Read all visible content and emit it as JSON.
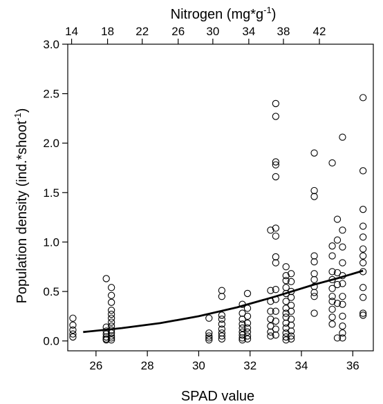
{
  "chart_data": {
    "type": "scatter",
    "title": "",
    "xlabel": "SPAD value",
    "ylabel": "Population density (ind.*shoot",
    "ylabel_superscript": "-1",
    "ylabel_close": ")",
    "top_axis_label": "Nitrogen (mg*g",
    "top_axis_superscript": "-1",
    "top_axis_close": ")",
    "xlim": [
      24.9,
      36.8
    ],
    "ylim": [
      -0.1,
      3.0
    ],
    "x_ticks": [
      26,
      28,
      30,
      32,
      34,
      36
    ],
    "y_ticks": [
      0.0,
      0.5,
      1.0,
      1.5,
      2.0,
      2.5,
      3.0
    ],
    "y_tick_labels": [
      "0.0",
      "0.5",
      "1.0",
      "1.5",
      "2.0",
      "2.5",
      "3.0"
    ],
    "top_ticks": [
      14,
      18,
      22,
      26,
      30,
      34,
      38,
      42
    ],
    "top_tick_spad": [
      25.05,
      26.45,
      27.8,
      29.2,
      30.55,
      31.95,
      33.3,
      34.7
    ],
    "grid": false,
    "marker": "open-circle",
    "points": [
      [
        25.1,
        0.23
      ],
      [
        25.1,
        0.16
      ],
      [
        25.1,
        0.11
      ],
      [
        25.1,
        0.07
      ],
      [
        25.1,
        0.04
      ],
      [
        26.4,
        0.63
      ],
      [
        26.4,
        0.14
      ],
      [
        26.4,
        0.1
      ],
      [
        26.4,
        0.07
      ],
      [
        26.4,
        0.04
      ],
      [
        26.4,
        0.02
      ],
      [
        26.4,
        0.01
      ],
      [
        26.6,
        0.54
      ],
      [
        26.6,
        0.46
      ],
      [
        26.6,
        0.39
      ],
      [
        26.6,
        0.31
      ],
      [
        26.6,
        0.27
      ],
      [
        26.6,
        0.23
      ],
      [
        26.6,
        0.19
      ],
      [
        26.6,
        0.15
      ],
      [
        26.6,
        0.11
      ],
      [
        26.6,
        0.08
      ],
      [
        26.6,
        0.05
      ],
      [
        26.6,
        0.03
      ],
      [
        26.6,
        0.01
      ],
      [
        30.4,
        0.23
      ],
      [
        30.4,
        0.08
      ],
      [
        30.4,
        0.05
      ],
      [
        30.4,
        0.03
      ],
      [
        30.4,
        0.01
      ],
      [
        30.9,
        0.51
      ],
      [
        30.9,
        0.45
      ],
      [
        30.9,
        0.26
      ],
      [
        30.9,
        0.22
      ],
      [
        30.9,
        0.17
      ],
      [
        30.9,
        0.12
      ],
      [
        30.9,
        0.08
      ],
      [
        30.9,
        0.05
      ],
      [
        30.9,
        0.02
      ],
      [
        31.7,
        0.37
      ],
      [
        31.7,
        0.28
      ],
      [
        31.7,
        0.22
      ],
      [
        31.7,
        0.17
      ],
      [
        31.7,
        0.13
      ],
      [
        31.7,
        0.09
      ],
      [
        31.7,
        0.06
      ],
      [
        31.7,
        0.03
      ],
      [
        31.7,
        0.01
      ],
      [
        31.9,
        0.48
      ],
      [
        31.9,
        0.33
      ],
      [
        31.9,
        0.25
      ],
      [
        31.9,
        0.18
      ],
      [
        31.9,
        0.13
      ],
      [
        31.9,
        0.09
      ],
      [
        31.9,
        0.05
      ],
      [
        31.9,
        0.02
      ],
      [
        32.8,
        1.12
      ],
      [
        32.8,
        0.51
      ],
      [
        32.8,
        0.4
      ],
      [
        32.8,
        0.3
      ],
      [
        32.8,
        0.22
      ],
      [
        32.8,
        0.15
      ],
      [
        32.8,
        0.09
      ],
      [
        32.8,
        0.05
      ],
      [
        33.0,
        2.4
      ],
      [
        33.0,
        2.27
      ],
      [
        33.0,
        1.81
      ],
      [
        33.0,
        1.78
      ],
      [
        33.0,
        1.66
      ],
      [
        33.0,
        1.14
      ],
      [
        33.0,
        1.06
      ],
      [
        33.0,
        0.85
      ],
      [
        33.0,
        0.79
      ],
      [
        33.0,
        0.52
      ],
      [
        33.0,
        0.42
      ],
      [
        33.0,
        0.3
      ],
      [
        33.0,
        0.2
      ],
      [
        33.0,
        0.12
      ],
      [
        33.0,
        0.06
      ],
      [
        33.4,
        0.75
      ],
      [
        33.4,
        0.66
      ],
      [
        33.4,
        0.61
      ],
      [
        33.4,
        0.54
      ],
      [
        33.4,
        0.48
      ],
      [
        33.4,
        0.4
      ],
      [
        33.4,
        0.33
      ],
      [
        33.4,
        0.28
      ],
      [
        33.4,
        0.24
      ],
      [
        33.4,
        0.18
      ],
      [
        33.4,
        0.13
      ],
      [
        33.4,
        0.08
      ],
      [
        33.4,
        0.04
      ],
      [
        33.4,
        0.01
      ],
      [
        33.6,
        0.68
      ],
      [
        33.6,
        0.6
      ],
      [
        33.6,
        0.5
      ],
      [
        33.6,
        0.44
      ],
      [
        33.6,
        0.36
      ],
      [
        33.6,
        0.3
      ],
      [
        33.6,
        0.22
      ],
      [
        33.6,
        0.16
      ],
      [
        33.6,
        0.1
      ],
      [
        33.6,
        0.05
      ],
      [
        33.6,
        0.02
      ],
      [
        34.5,
        1.9
      ],
      [
        34.5,
        1.52
      ],
      [
        34.5,
        1.46
      ],
      [
        34.5,
        0.86
      ],
      [
        34.5,
        0.8
      ],
      [
        34.5,
        0.68
      ],
      [
        34.5,
        0.62
      ],
      [
        34.5,
        0.55
      ],
      [
        34.5,
        0.49
      ],
      [
        34.5,
        0.45
      ],
      [
        34.5,
        0.28
      ],
      [
        35.2,
        1.8
      ],
      [
        35.2,
        0.96
      ],
      [
        35.2,
        0.86
      ],
      [
        35.2,
        0.7
      ],
      [
        35.2,
        0.62
      ],
      [
        35.2,
        0.53
      ],
      [
        35.2,
        0.45
      ],
      [
        35.2,
        0.4
      ],
      [
        35.2,
        0.32
      ],
      [
        35.2,
        0.24
      ],
      [
        35.2,
        0.17
      ],
      [
        35.4,
        1.23
      ],
      [
        35.4,
        1.02
      ],
      [
        35.4,
        0.69
      ],
      [
        35.4,
        0.57
      ],
      [
        35.4,
        0.38
      ],
      [
        35.4,
        0.03
      ],
      [
        35.6,
        2.06
      ],
      [
        35.6,
        1.12
      ],
      [
        35.6,
        0.95
      ],
      [
        35.6,
        0.79
      ],
      [
        35.6,
        0.66
      ],
      [
        35.6,
        0.58
      ],
      [
        35.6,
        0.45
      ],
      [
        35.6,
        0.37
      ],
      [
        35.6,
        0.25
      ],
      [
        35.6,
        0.15
      ],
      [
        35.6,
        0.08
      ],
      [
        35.6,
        0.03
      ],
      [
        36.4,
        2.46
      ],
      [
        36.4,
        1.72
      ],
      [
        36.4,
        1.33
      ],
      [
        36.4,
        1.16
      ],
      [
        36.4,
        1.05
      ],
      [
        36.4,
        0.93
      ],
      [
        36.4,
        0.86
      ],
      [
        36.4,
        0.79
      ],
      [
        36.4,
        0.7
      ],
      [
        36.4,
        0.54
      ],
      [
        36.4,
        0.44
      ],
      [
        36.4,
        0.28
      ],
      [
        36.4,
        0.26
      ]
    ],
    "fit_curve": {
      "type": "exponential",
      "x": [
        25.5,
        36.4
      ],
      "points": [
        [
          25.5,
          0.09
        ],
        [
          27.0,
          0.13
        ],
        [
          28.5,
          0.18
        ],
        [
          30.0,
          0.25
        ],
        [
          31.5,
          0.34
        ],
        [
          33.0,
          0.45
        ],
        [
          34.5,
          0.57
        ],
        [
          35.5,
          0.64
        ],
        [
          36.4,
          0.71
        ]
      ]
    }
  }
}
